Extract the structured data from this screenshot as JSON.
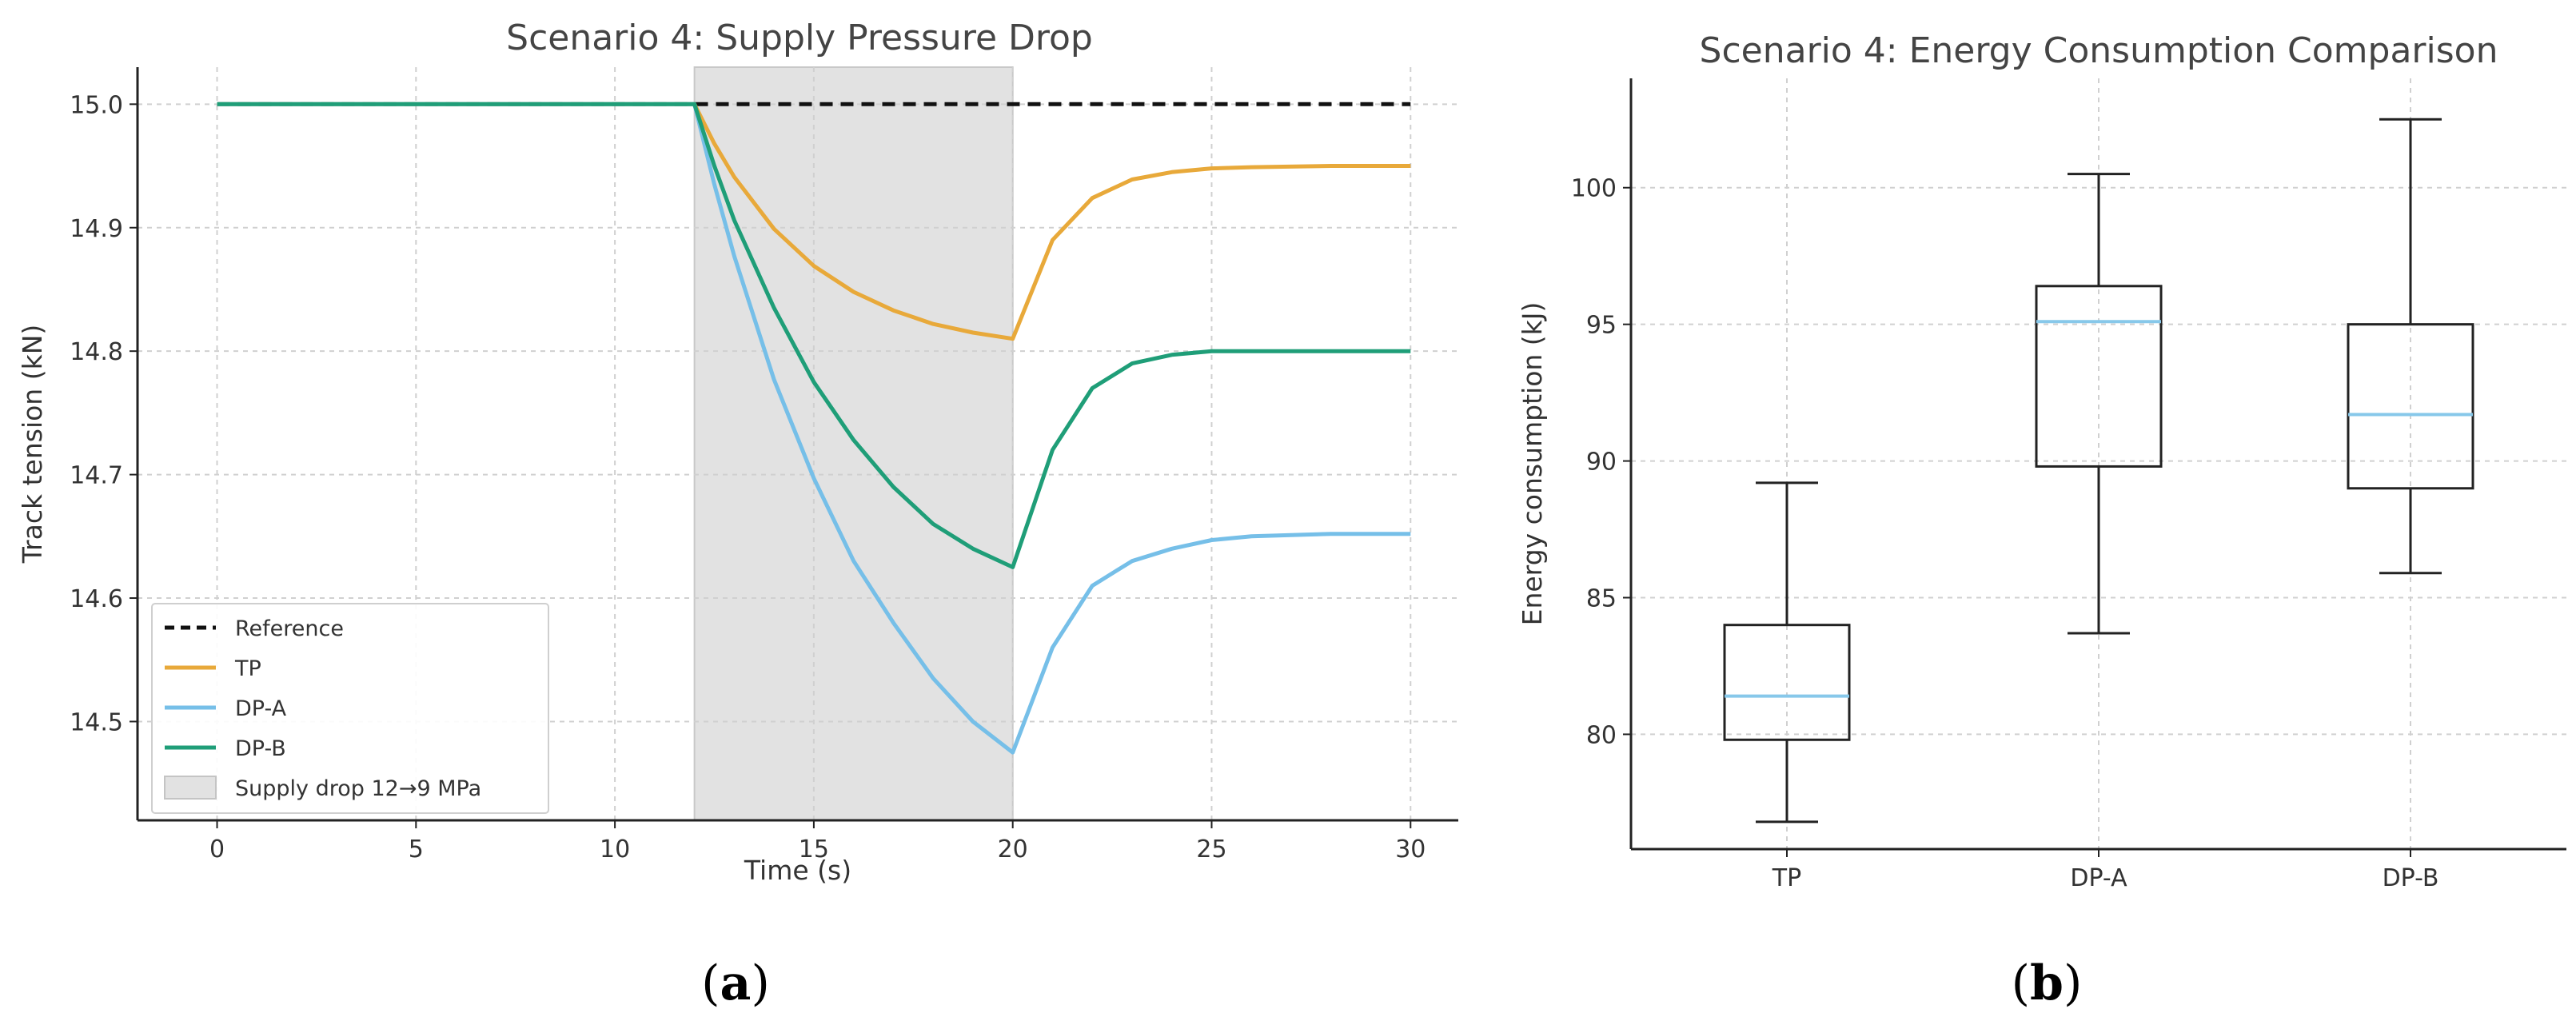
{
  "figure": {
    "caption_a": "a",
    "caption_b": "b"
  },
  "chart_data": [
    {
      "type": "line",
      "title": "Scenario 4: Supply Pressure Drop",
      "xlabel": "Time (s)",
      "ylabel": "Track tension (kN)",
      "xlim": [
        -2.0,
        31.2
      ],
      "ylim": [
        14.42,
        15.03
      ],
      "xticks": [
        0,
        5,
        10,
        15,
        20,
        25,
        30
      ],
      "xtick_labels": [
        "0",
        "5",
        "10",
        "15",
        "20",
        "25",
        "30"
      ],
      "yticks": [
        14.5,
        14.6,
        14.7,
        14.8,
        14.9,
        15.0
      ],
      "ytick_labels": [
        "14.5",
        "14.6",
        "14.7",
        "14.8",
        "14.9",
        "15.0"
      ],
      "grid": true,
      "legend_position": "lower-left",
      "shaded_region": {
        "x0": 12,
        "x1": 20,
        "label": "Supply drop 12→9 MPa",
        "color": "#e2e2e2"
      },
      "series": [
        {
          "name": "Reference",
          "color": "#111111",
          "dashed": true,
          "x": [
            0,
            30
          ],
          "y": [
            15.0,
            15.0
          ]
        },
        {
          "name": "TP",
          "color": "#e8a93a",
          "dashed": false,
          "x": [
            0,
            12,
            12.5,
            13,
            14,
            15,
            16,
            17,
            18,
            19,
            20,
            21,
            22,
            23,
            24,
            25,
            26,
            28,
            30
          ],
          "y": [
            15.0,
            15.0,
            14.968,
            14.941,
            14.899,
            14.869,
            14.848,
            14.833,
            14.822,
            14.815,
            14.81,
            14.89,
            14.924,
            14.939,
            14.945,
            14.948,
            14.949,
            14.95,
            14.95
          ]
        },
        {
          "name": "DP-A",
          "color": "#76bfe8",
          "dashed": false,
          "x": [
            0,
            12,
            12.5,
            13,
            14,
            15,
            16,
            17,
            18,
            19,
            20,
            21,
            22,
            23,
            24,
            25,
            26,
            28,
            30
          ],
          "y": [
            15.0,
            15.0,
            14.935,
            14.877,
            14.777,
            14.697,
            14.63,
            14.58,
            14.535,
            14.5,
            14.475,
            14.56,
            14.61,
            14.63,
            14.64,
            14.647,
            14.65,
            14.652,
            14.652
          ]
        },
        {
          "name": "DP-B",
          "color": "#1f9e78",
          "dashed": false,
          "x": [
            0,
            12,
            12.5,
            13,
            14,
            15,
            16,
            17,
            18,
            19,
            20,
            21,
            22,
            23,
            24,
            25,
            26,
            28,
            30
          ],
          "y": [
            15.0,
            15.0,
            14.95,
            14.906,
            14.835,
            14.775,
            14.728,
            14.69,
            14.66,
            14.64,
            14.625,
            14.72,
            14.77,
            14.79,
            14.797,
            14.8,
            14.8,
            14.8,
            14.8
          ]
        }
      ]
    },
    {
      "type": "box",
      "title": "Scenario 4: Energy Consumption Comparison",
      "xlabel": "",
      "ylabel": "Energy consumption (kJ)",
      "ylim": [
        75.8,
        104.0
      ],
      "yticks": [
        80,
        85,
        90,
        95,
        100
      ],
      "ytick_labels": [
        "80",
        "85",
        "90",
        "95",
        "100"
      ],
      "grid": true,
      "categories": [
        "TP",
        "DP-A",
        "DP-B"
      ],
      "median_color": "#87c8ea",
      "boxes": [
        {
          "name": "TP",
          "whisker_low": 76.8,
          "q1": 79.8,
          "median": 81.4,
          "q3": 84.0,
          "whisker_high": 89.2
        },
        {
          "name": "DP-A",
          "whisker_low": 83.7,
          "q1": 89.8,
          "median": 95.1,
          "q3": 96.4,
          "whisker_high": 100.5
        },
        {
          "name": "DP-B",
          "whisker_low": 85.9,
          "q1": 89.0,
          "median": 91.7,
          "q3": 95.0,
          "whisker_high": 102.5
        }
      ]
    }
  ]
}
